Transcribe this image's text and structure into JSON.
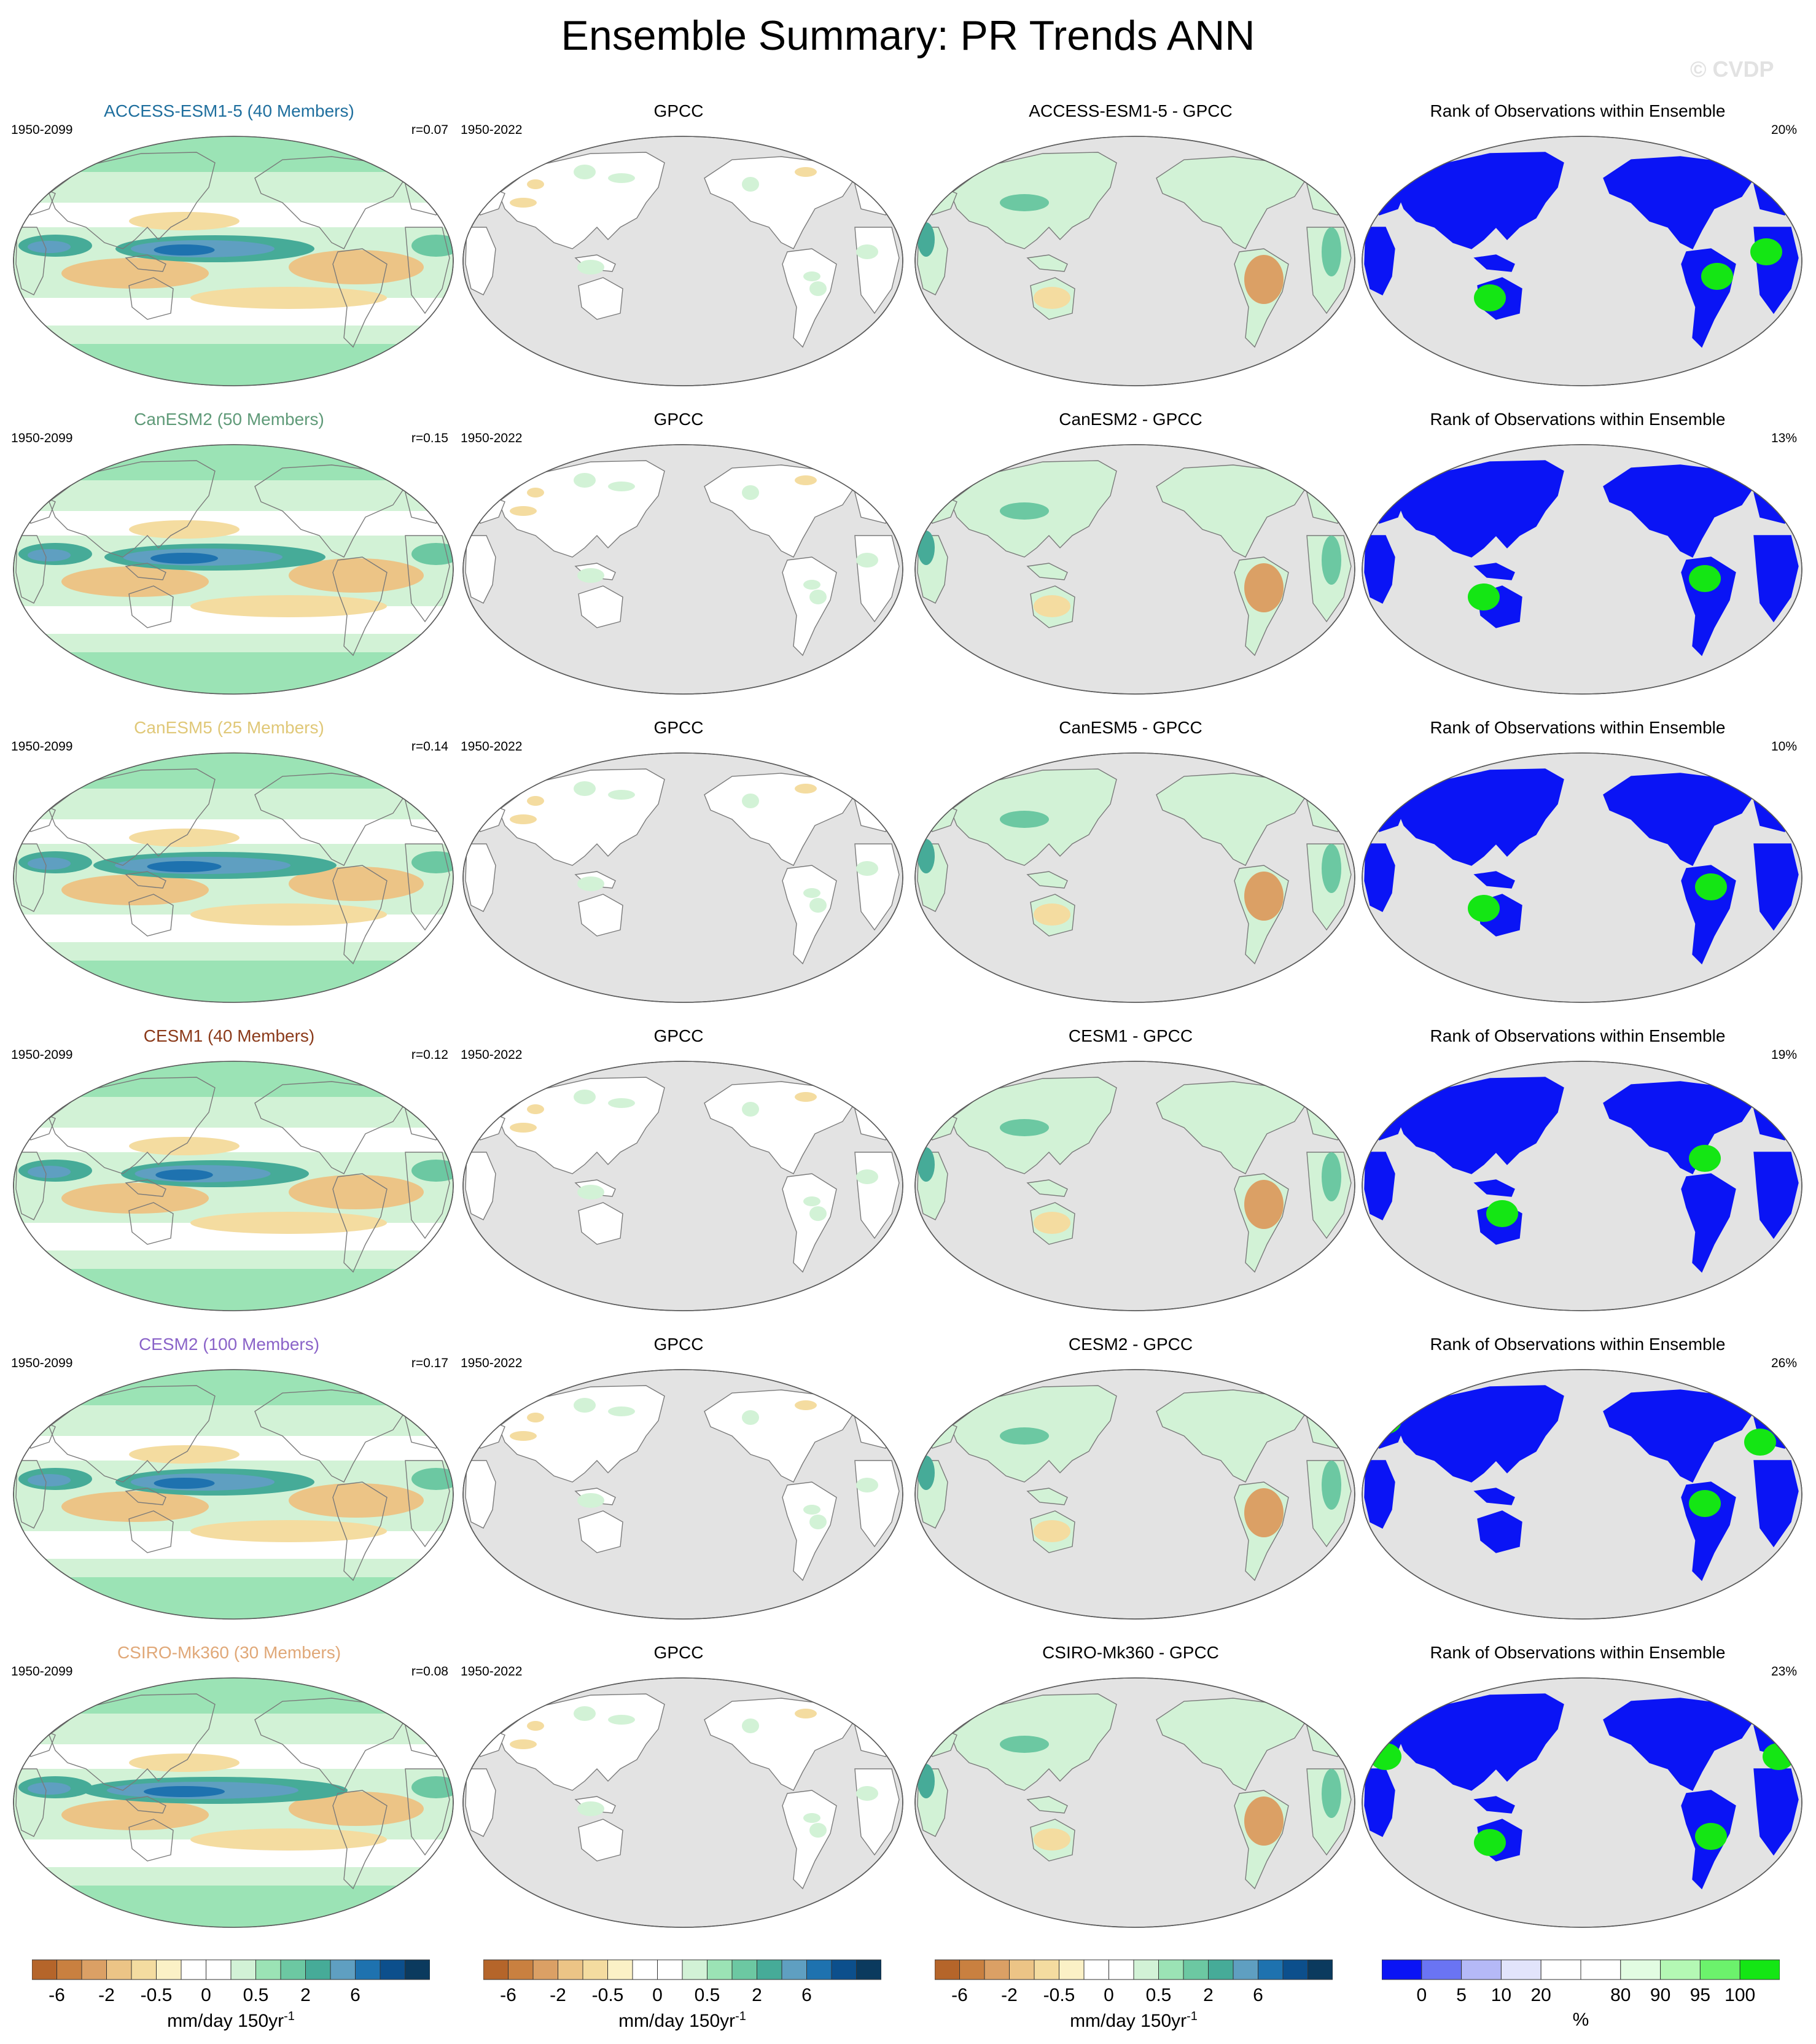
{
  "title": "Ensemble Summary: PR Trends ANN",
  "watermark": "© CVDP",
  "columns": [
    "ensemble",
    "observation",
    "difference",
    "rank"
  ],
  "rows": [
    {
      "model_title": "ACCESS-ESM1-5 (40 Members)",
      "model_color": "#1f6f9e",
      "model_period": "1950-2099",
      "r_value": "r=0.07",
      "obs_title": "GPCC",
      "obs_period": "1950-2022",
      "diff_title": "ACCESS-ESM1-5 - GPCC",
      "rank_title": "Rank of Observations within Ensemble",
      "rank_pct": "20%"
    },
    {
      "model_title": "CanESM2 (50 Members)",
      "model_color": "#5f9a78",
      "model_period": "1950-2099",
      "r_value": "r=0.15",
      "obs_title": "GPCC",
      "obs_period": "1950-2022",
      "diff_title": "CanESM2 - GPCC",
      "rank_title": "Rank of Observations within Ensemble",
      "rank_pct": "13%"
    },
    {
      "model_title": "CanESM5 (25 Members)",
      "model_color": "#e0c878",
      "model_period": "1950-2099",
      "r_value": "r=0.14",
      "obs_title": "GPCC",
      "obs_period": "1950-2022",
      "diff_title": "CanESM5 - GPCC",
      "rank_title": "Rank of Observations within Ensemble",
      "rank_pct": "10%"
    },
    {
      "model_title": "CESM1 (40 Members)",
      "model_color": "#8b3a1a",
      "model_period": "1950-2099",
      "r_value": "r=0.12",
      "obs_title": "GPCC",
      "obs_period": "1950-2022",
      "diff_title": "CESM1 - GPCC",
      "rank_title": "Rank of Observations within Ensemble",
      "rank_pct": "19%"
    },
    {
      "model_title": "CESM2 (100 Members)",
      "model_color": "#8a63c8",
      "model_period": "1950-2099",
      "r_value": "r=0.17",
      "obs_title": "GPCC",
      "obs_period": "1950-2022",
      "diff_title": "CESM2 - GPCC",
      "rank_title": "Rank of Observations within Ensemble",
      "rank_pct": "26%"
    },
    {
      "model_title": "CSIRO-Mk360 (30 Members)",
      "model_color": "#e0a878",
      "model_period": "1950-2099",
      "r_value": "r=0.08",
      "obs_title": "GPCC",
      "obs_period": "1950-2022",
      "diff_title": "CSIRO-Mk360 - GPCC",
      "rank_title": "Rank of Observations within Ensemble",
      "rank_pct": "23%"
    }
  ],
  "trend_colorbar": {
    "colors": [
      "#b5652a",
      "#c98040",
      "#dba065",
      "#ecc486",
      "#f4dca0",
      "#fbf1c6",
      "#ffffff",
      "#ffffff",
      "#d2f2d6",
      "#9be3b5",
      "#6cc8a2",
      "#46ab98",
      "#5f9fc1",
      "#1e72af",
      "#0c4f8c",
      "#0b3a5e"
    ],
    "ticks": [
      "-6",
      "-2",
      "-0.5",
      "0",
      "0.5",
      "2",
      "6"
    ],
    "unit": "mm/day 150yr",
    "unit_sup": "-1"
  },
  "rank_colorbar": {
    "colors": [
      "#0a14f5",
      "#6a74f3",
      "#b5b9f7",
      "#e2e4fb",
      "#ffffff",
      "#ffffff",
      "#e2fce2",
      "#b4f8b4",
      "#6cf26c",
      "#14e614"
    ],
    "ticks": [
      "0",
      "5",
      "10",
      "20",
      "80",
      "90",
      "95",
      "100"
    ],
    "unit": "%"
  },
  "map_colors": {
    "land_gray": "#e3e3e3",
    "coast": "#8a8a8a",
    "rank_blue": "#0a14f5",
    "rank_green": "#14e614"
  }
}
